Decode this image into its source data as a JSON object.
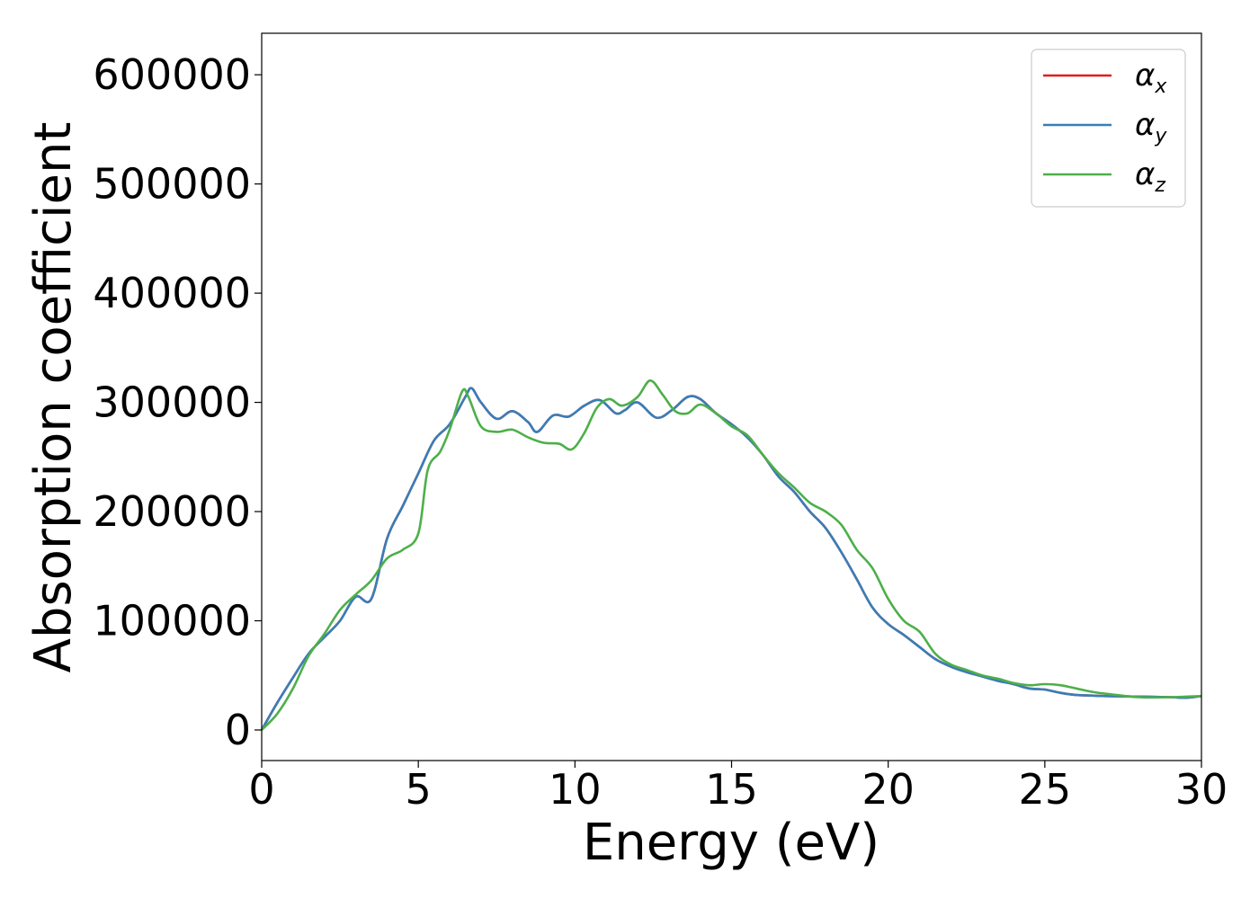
{
  "chart_data": {
    "type": "line",
    "xlabel": "Energy (eV)",
    "ylabel": "Absorption coefficient",
    "xlim": [
      0,
      30
    ],
    "ylim": [
      -28000,
      638000
    ],
    "xticks": [
      0,
      5,
      10,
      15,
      20,
      25,
      30
    ],
    "yticks": [
      0,
      100000,
      200000,
      300000,
      400000,
      500000,
      600000
    ],
    "grid": false,
    "legend_position": "top-right",
    "series": [
      {
        "name": "αx",
        "legend_main": "α",
        "legend_sub": "x",
        "color": "#e41a1c",
        "x": [
          0,
          0.5,
          1,
          1.5,
          2,
          2.5,
          3,
          3.5,
          4,
          4.5,
          5,
          5.5,
          6,
          6.5,
          6.7,
          7,
          7.5,
          8,
          8.5,
          8.8,
          9.3,
          9.8,
          10.3,
          10.8,
          11.3,
          11.6,
          12,
          12.6,
          13.1,
          13.6,
          14,
          14.5,
          15,
          15.5,
          16,
          16.5,
          17,
          17.5,
          18,
          18.5,
          19,
          19.5,
          20,
          20.5,
          21,
          21.5,
          22,
          22.5,
          23,
          23.5,
          24,
          24.5,
          25,
          25.5,
          26,
          26.5,
          27,
          28,
          29,
          29.5,
          30
        ],
        "y": [
          0,
          25000,
          48000,
          70000,
          85000,
          100000,
          122000,
          120000,
          175000,
          205000,
          235000,
          265000,
          280000,
          305000,
          313000,
          300000,
          285000,
          292000,
          282000,
          273000,
          288000,
          287000,
          297000,
          302000,
          290000,
          293000,
          300000,
          286000,
          293000,
          305000,
          303000,
          290000,
          280000,
          268000,
          252000,
          232000,
          218000,
          200000,
          185000,
          163000,
          138000,
          112000,
          97000,
          87000,
          76000,
          65000,
          58000,
          53000,
          49000,
          45000,
          42000,
          38000,
          37000,
          34000,
          32000,
          31500,
          31000,
          30500,
          30000,
          29500,
          31000
        ]
      },
      {
        "name": "αy",
        "legend_main": "α",
        "legend_sub": "y",
        "color": "#377eb8",
        "x": [
          0,
          0.5,
          1,
          1.5,
          2,
          2.5,
          3,
          3.5,
          4,
          4.5,
          5,
          5.5,
          6,
          6.5,
          6.7,
          7,
          7.5,
          8,
          8.5,
          8.8,
          9.3,
          9.8,
          10.3,
          10.8,
          11.3,
          11.6,
          12,
          12.6,
          13.1,
          13.6,
          14,
          14.5,
          15,
          15.5,
          16,
          16.5,
          17,
          17.5,
          18,
          18.5,
          19,
          19.5,
          20,
          20.5,
          21,
          21.5,
          22,
          22.5,
          23,
          23.5,
          24,
          24.5,
          25,
          25.5,
          26,
          26.5,
          27,
          28,
          29,
          29.5,
          30
        ],
        "y": [
          0,
          25000,
          48000,
          70000,
          85000,
          100000,
          122000,
          120000,
          175000,
          205000,
          235000,
          265000,
          280000,
          305000,
          313000,
          300000,
          285000,
          292000,
          282000,
          273000,
          288000,
          287000,
          297000,
          302000,
          290000,
          293000,
          300000,
          286000,
          293000,
          305000,
          303000,
          290000,
          280000,
          268000,
          252000,
          232000,
          218000,
          200000,
          185000,
          163000,
          138000,
          112000,
          97000,
          87000,
          76000,
          65000,
          58000,
          53000,
          49000,
          45000,
          42000,
          38000,
          37000,
          34000,
          32000,
          31500,
          31000,
          30500,
          30000,
          29500,
          31000
        ]
      },
      {
        "name": "αz",
        "legend_main": "α",
        "legend_sub": "z",
        "color": "#4daf4a",
        "x": [
          0,
          0.5,
          1,
          1.5,
          2,
          2.5,
          3,
          3.5,
          4,
          4.5,
          5,
          5.3,
          5.7,
          6,
          6.4,
          6.6,
          7,
          7.5,
          8,
          8.5,
          9,
          9.5,
          9.9,
          10.3,
          10.7,
          11.1,
          11.5,
          12,
          12.4,
          12.8,
          13.2,
          13.6,
          14,
          14.5,
          15,
          15.5,
          16,
          16.5,
          17,
          17.5,
          18,
          18.5,
          19,
          19.5,
          20,
          20.5,
          21,
          21.5,
          22,
          22.5,
          23,
          23.5,
          24,
          24.5,
          25,
          25.5,
          26,
          26.5,
          27,
          28,
          29,
          29.5,
          30
        ],
        "y": [
          0,
          15000,
          38000,
          68000,
          88000,
          110000,
          124000,
          137000,
          157000,
          165000,
          180000,
          238000,
          255000,
          275000,
          310000,
          305000,
          278000,
          273000,
          275000,
          268000,
          263000,
          262000,
          257000,
          272000,
          295000,
          303000,
          297000,
          305000,
          320000,
          307000,
          292000,
          290000,
          298000,
          290000,
          278000,
          270000,
          252000,
          235000,
          222000,
          208000,
          200000,
          188000,
          165000,
          148000,
          120000,
          100000,
          90000,
          70000,
          60000,
          55000,
          50000,
          47000,
          43000,
          41000,
          42000,
          41000,
          38000,
          35000,
          33000,
          30000,
          30000,
          30500,
          31000
        ]
      }
    ]
  }
}
